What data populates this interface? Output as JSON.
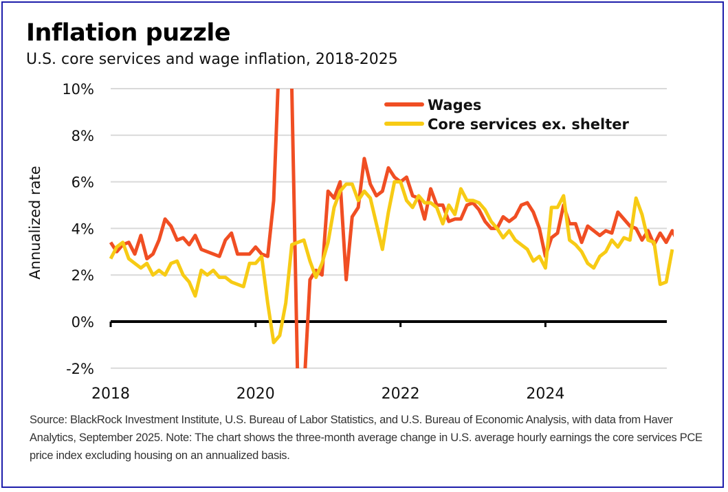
{
  "chart_data": {
    "type": "line",
    "title": "Inflation puzzle",
    "subtitle": "U.S. core services and wage inflation, 2018-2025",
    "xlabel": "",
    "ylabel": "Annualized rate",
    "ylim": [
      -2,
      10
    ],
    "xlim": [
      2018.0,
      2025.67
    ],
    "grid": true,
    "legend_position": "top-right",
    "y_ticks": [
      {
        "value": 10,
        "label": "10%"
      },
      {
        "value": 8,
        "label": "8%"
      },
      {
        "value": 6,
        "label": "6%"
      },
      {
        "value": 4,
        "label": "4%"
      },
      {
        "value": 2,
        "label": "2%"
      },
      {
        "value": 0,
        "label": "0%"
      },
      {
        "value": -2,
        "label": "-2%"
      }
    ],
    "x_ticks": [
      {
        "value": 2018,
        "label": "2018"
      },
      {
        "value": 2020,
        "label": "2020"
      },
      {
        "value": 2022,
        "label": "2022"
      },
      {
        "value": 2024,
        "label": "2024"
      }
    ],
    "x_start": 2018.0,
    "x_step_months": 1,
    "series": [
      {
        "name": "Wages",
        "color": "#f04e23",
        "values": [
          3.4,
          3.0,
          3.3,
          3.4,
          2.9,
          3.7,
          2.7,
          2.9,
          3.5,
          4.4,
          4.1,
          3.5,
          3.6,
          3.3,
          3.7,
          3.1,
          3.0,
          2.9,
          2.8,
          3.5,
          3.8,
          2.9,
          2.9,
          2.9,
          3.2,
          2.9,
          2.8,
          5.2,
          12.0,
          12.0,
          10.0,
          -3.0,
          -3.0,
          1.8,
          2.2,
          2.0,
          5.6,
          5.3,
          6.0,
          1.8,
          4.5,
          4.9,
          7.0,
          5.9,
          5.4,
          5.6,
          6.6,
          6.2,
          6.0,
          6.2,
          5.4,
          5.3,
          4.4,
          5.7,
          5.0,
          5.0,
          4.3,
          4.4,
          4.4,
          5.0,
          5.1,
          4.8,
          4.3,
          4.0,
          4.0,
          4.5,
          4.3,
          4.5,
          5.0,
          5.1,
          4.7,
          4.0,
          2.8,
          3.6,
          3.8,
          5.0,
          4.2,
          4.2,
          3.4,
          4.1,
          3.9,
          3.7,
          3.9,
          3.8,
          4.7,
          4.4,
          4.1,
          4.0,
          3.5,
          3.9,
          3.3,
          3.8,
          3.4,
          3.9,
          3.4
        ]
      },
      {
        "name": "Core services ex. shelter",
        "color": "#f7cb15",
        "values": [
          2.7,
          3.2,
          3.4,
          2.7,
          2.5,
          2.3,
          2.5,
          2.0,
          2.2,
          2.0,
          2.5,
          2.6,
          2.0,
          1.7,
          1.1,
          2.2,
          2.0,
          2.2,
          1.9,
          1.9,
          1.7,
          1.6,
          1.5,
          2.5,
          2.5,
          2.8,
          0.8,
          -0.9,
          -0.6,
          0.8,
          3.3,
          3.4,
          3.5,
          2.6,
          1.9,
          2.5,
          3.4,
          4.9,
          5.6,
          5.9,
          5.9,
          5.2,
          5.6,
          5.3,
          4.2,
          3.1,
          4.7,
          6.0,
          6.0,
          5.2,
          4.9,
          5.4,
          5.1,
          5.1,
          4.9,
          4.2,
          5.0,
          4.6,
          5.7,
          5.2,
          5.2,
          5.1,
          4.8,
          4.3,
          4.0,
          3.6,
          3.9,
          3.5,
          3.3,
          3.1,
          2.6,
          2.8,
          2.3,
          4.9,
          4.9,
          5.4,
          3.5,
          3.3,
          3.0,
          2.5,
          2.3,
          2.8,
          3.0,
          3.5,
          3.2,
          3.6,
          3.5,
          5.3,
          4.6,
          3.5,
          3.4,
          1.6,
          1.7,
          3.1
        ]
      }
    ],
    "clip_note": "Wages series exceeds axis range in 2020 and is clipped at 10% and -2%"
  },
  "footnote": "Source: BlackRock Investment Institute, U.S. Bureau of Labor Statistics, and U.S. Bureau of Economic Analysis, with data from Haver Analytics, September 2025. Note: The chart shows the three-month average change in U.S. average hourly earnings the core services PCE price index excluding housing on an annualized basis.",
  "colors": {
    "frame_border": "#1c1caa",
    "gridline": "#d9d9d9",
    "zero_line": "#000000"
  }
}
